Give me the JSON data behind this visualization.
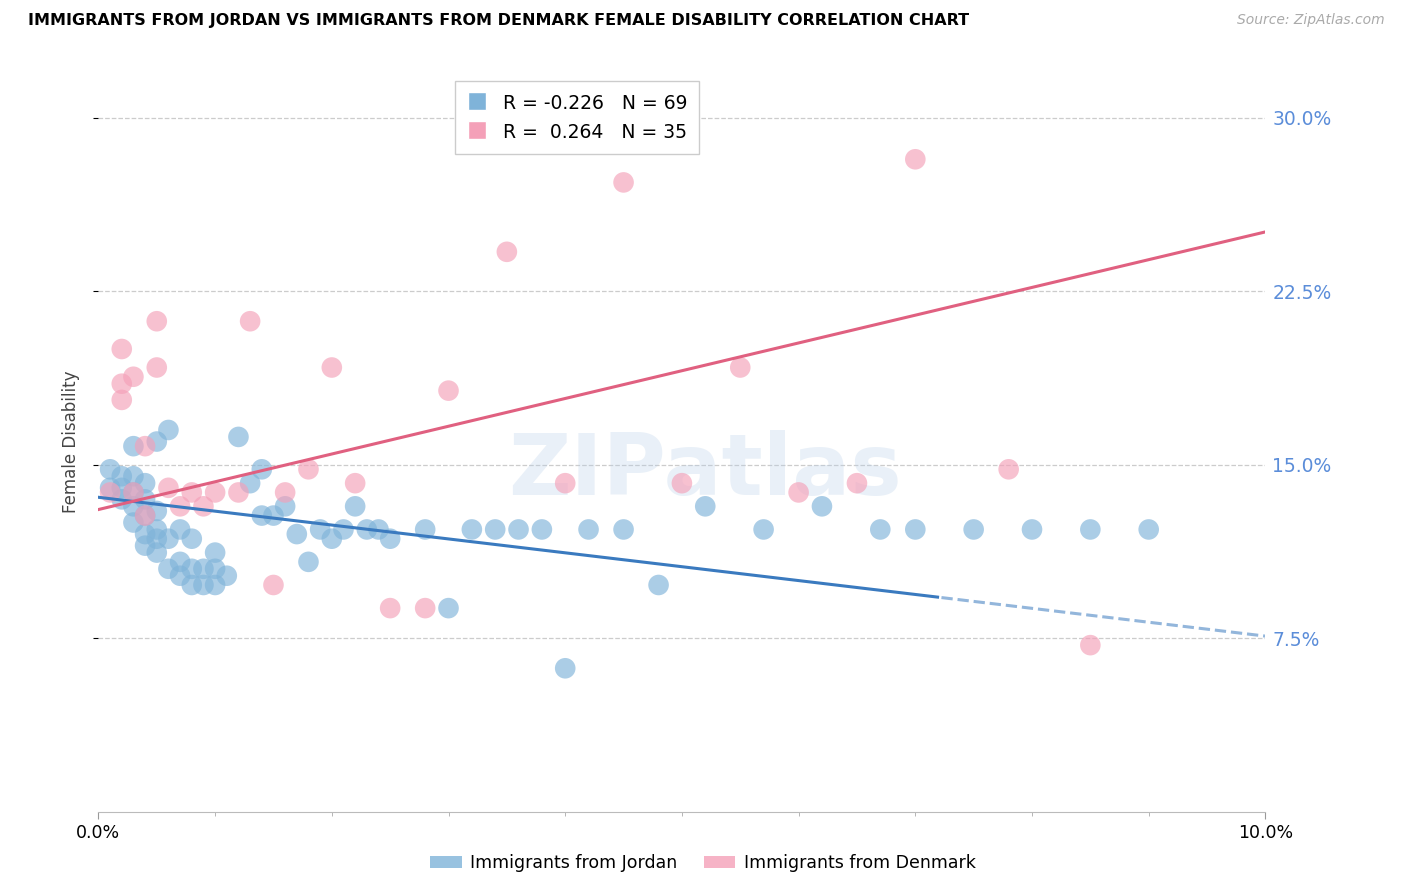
{
  "title": "IMMIGRANTS FROM JORDAN VS IMMIGRANTS FROM DENMARK FEMALE DISABILITY CORRELATION CHART",
  "source": "Source: ZipAtlas.com",
  "ylabel": "Female Disability",
  "legend_label1": "Immigrants from Jordan",
  "legend_label2": "Immigrants from Denmark",
  "R1": -0.226,
  "N1": 69,
  "R2": 0.264,
  "N2": 35,
  "color_jordan": "#7fb3d9",
  "color_denmark": "#f4a0b8",
  "color_jordan_line": "#3a7abf",
  "color_denmark_line": "#e06080",
  "xmin": 0.0,
  "xmax": 0.1,
  "ymin": 0.0,
  "ymax": 0.32,
  "yticks": [
    0.075,
    0.15,
    0.225,
    0.3
  ],
  "xtick_positions": [
    0.0,
    0.1
  ],
  "xtick_labels": [
    "0.0%",
    "10.0%"
  ],
  "background_color": "#ffffff",
  "watermark_text": "ZIPatlas",
  "jordan_x": [
    0.001,
    0.001,
    0.002,
    0.002,
    0.002,
    0.003,
    0.003,
    0.003,
    0.003,
    0.003,
    0.004,
    0.004,
    0.004,
    0.004,
    0.004,
    0.005,
    0.005,
    0.005,
    0.005,
    0.005,
    0.006,
    0.006,
    0.006,
    0.007,
    0.007,
    0.007,
    0.008,
    0.008,
    0.008,
    0.009,
    0.009,
    0.01,
    0.01,
    0.01,
    0.011,
    0.012,
    0.013,
    0.014,
    0.014,
    0.015,
    0.016,
    0.017,
    0.018,
    0.019,
    0.02,
    0.021,
    0.022,
    0.023,
    0.024,
    0.025,
    0.028,
    0.03,
    0.032,
    0.034,
    0.036,
    0.038,
    0.04,
    0.042,
    0.045,
    0.048,
    0.052,
    0.057,
    0.062,
    0.067,
    0.07,
    0.075,
    0.08,
    0.085,
    0.09
  ],
  "jordan_y": [
    0.14,
    0.148,
    0.135,
    0.14,
    0.145,
    0.125,
    0.132,
    0.138,
    0.145,
    0.158,
    0.115,
    0.12,
    0.128,
    0.135,
    0.142,
    0.112,
    0.118,
    0.122,
    0.13,
    0.16,
    0.105,
    0.118,
    0.165,
    0.102,
    0.108,
    0.122,
    0.098,
    0.105,
    0.118,
    0.098,
    0.105,
    0.098,
    0.105,
    0.112,
    0.102,
    0.162,
    0.142,
    0.128,
    0.148,
    0.128,
    0.132,
    0.12,
    0.108,
    0.122,
    0.118,
    0.122,
    0.132,
    0.122,
    0.122,
    0.118,
    0.122,
    0.088,
    0.122,
    0.122,
    0.122,
    0.122,
    0.062,
    0.122,
    0.122,
    0.098,
    0.132,
    0.122,
    0.132,
    0.122,
    0.122,
    0.122,
    0.122,
    0.122,
    0.122
  ],
  "denmark_x": [
    0.001,
    0.002,
    0.002,
    0.002,
    0.003,
    0.003,
    0.004,
    0.004,
    0.005,
    0.005,
    0.006,
    0.007,
    0.008,
    0.009,
    0.01,
    0.012,
    0.013,
    0.015,
    0.016,
    0.018,
    0.02,
    0.022,
    0.025,
    0.028,
    0.03,
    0.035,
    0.04,
    0.045,
    0.05,
    0.055,
    0.06,
    0.065,
    0.07,
    0.078,
    0.085
  ],
  "denmark_y": [
    0.138,
    0.178,
    0.185,
    0.2,
    0.138,
    0.188,
    0.128,
    0.158,
    0.192,
    0.212,
    0.14,
    0.132,
    0.138,
    0.132,
    0.138,
    0.138,
    0.212,
    0.098,
    0.138,
    0.148,
    0.192,
    0.142,
    0.088,
    0.088,
    0.182,
    0.242,
    0.142,
    0.272,
    0.142,
    0.192,
    0.138,
    0.142,
    0.282,
    0.148,
    0.072
  ],
  "line_solid_end_jordan": 0.072,
  "grid_color": "#cccccc",
  "grid_linestyle": "--",
  "right_axis_color": "#5b8dd9"
}
